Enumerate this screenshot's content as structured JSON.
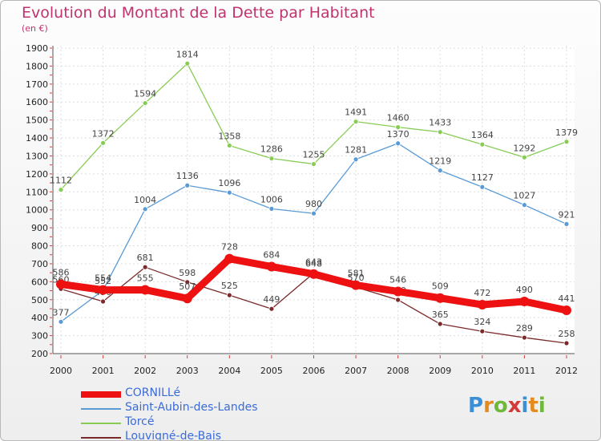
{
  "title": "Evolution du Montant de la Dette par Habitant",
  "subtitle": "(en €)",
  "logo": {
    "text": "Proxiti",
    "colors": [
      "#3b8fd6",
      "#e68a1c",
      "#6fb83a",
      "#d43a3a",
      "#3b8fd6",
      "#e68a1c",
      "#6fb83a"
    ]
  },
  "chart_data": {
    "type": "line",
    "x": [
      "2000",
      "2001",
      "2002",
      "2003",
      "2004",
      "2005",
      "2006",
      "2007",
      "2008",
      "2009",
      "2010",
      "2011",
      "2012"
    ],
    "ylim": [
      200,
      1900
    ],
    "yticks": [
      200,
      300,
      400,
      500,
      600,
      700,
      800,
      900,
      1000,
      1100,
      1200,
      1300,
      1400,
      1500,
      1600,
      1700,
      1800,
      1900
    ],
    "grid": true,
    "legend_position": "bottom-left",
    "series": [
      {
        "name": "Torcé",
        "color": "#88cc55",
        "values": [
          1112,
          1372,
          1594,
          1814,
          1358,
          1286,
          1255,
          1491,
          1460,
          1433,
          1364,
          1292,
          1379
        ]
      },
      {
        "name": "Saint-Aubin-des-Landes",
        "color": "#5a9bd5",
        "values": [
          377,
          552,
          1004,
          1136,
          1096,
          1006,
          980,
          1281,
          1370,
          1219,
          1127,
          1027,
          921
        ]
      },
      {
        "name": "Louvigné-de-Bais",
        "color": "#7a2a2a",
        "values": [
          560,
          490,
          681,
          598,
          525,
          449,
          648,
          570,
          499,
          365,
          324,
          289,
          258
        ]
      },
      {
        "name": "CORNILLé",
        "color": "#ee1111",
        "values": [
          586,
          554,
          555,
          507,
          728,
          684,
          643,
          581,
          546,
          509,
          472,
          490,
          441
        ]
      }
    ],
    "legend_order": [
      "CORNILLé",
      "Saint-Aubin-des-Landes",
      "Torcé",
      "Louvigné-de-Bais"
    ]
  }
}
